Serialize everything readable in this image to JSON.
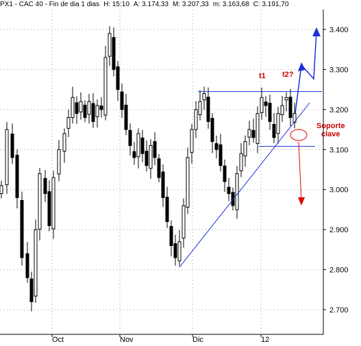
{
  "header": {
    "symbol": "PX1 - CAC 40 - Fin de dia 1 dias",
    "time": "H: 15:10",
    "open": "A: 3.174,33",
    "high": "M: 3.207,33",
    "low": "m: 3.163,68",
    "close": "C: 3.191,70"
  },
  "chart_data": {
    "type": "candlestick",
    "y_ticks": [
      "2.700",
      "2.800",
      "2.900",
      "3.000",
      "3.100",
      "3.200",
      "3.300",
      "3.400"
    ],
    "y_tick_values": [
      2700,
      2800,
      2900,
      3000,
      3100,
      3200,
      3300,
      3400
    ],
    "x_labels": [
      "Oct",
      "Nov",
      "Dic",
      "12"
    ],
    "ylim": [
      2680,
      3450
    ],
    "grid": true,
    "annotations": {
      "t1": "t1",
      "t2": "t2?",
      "soporte_line1": "Soporte",
      "soporte_line2": "clave"
    },
    "levels": {
      "resistance": 3245,
      "support": 3108
    },
    "colors": {
      "candle": "#000000",
      "trendline": "#1a2fd6",
      "arrow_up": "#1a2fd6",
      "arrow_down": "#dd0000",
      "annotation": "#cc0000"
    }
  }
}
